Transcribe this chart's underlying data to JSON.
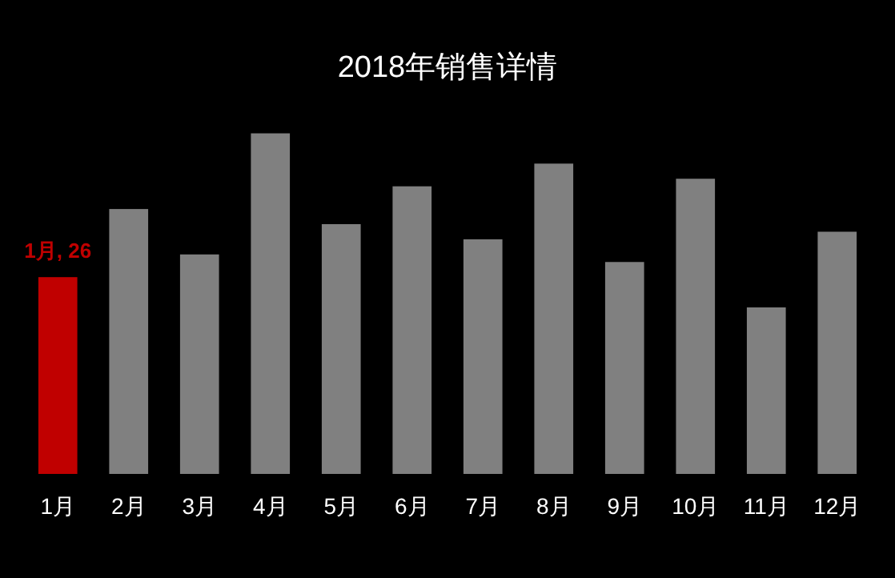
{
  "chart_data": {
    "type": "bar",
    "title": "2018年销售详情",
    "categories": [
      "1月",
      "2月",
      "3月",
      "4月",
      "5月",
      "6月",
      "7月",
      "8月",
      "9月",
      "10月",
      "11月",
      "12月"
    ],
    "values": [
      26,
      35,
      29,
      45,
      33,
      38,
      31,
      41,
      28,
      39,
      22,
      32
    ],
    "colors": [
      "#c00000",
      "#808080",
      "#808080",
      "#808080",
      "#808080",
      "#808080",
      "#808080",
      "#808080",
      "#808080",
      "#808080",
      "#808080",
      "#808080"
    ],
    "value_labels": [
      "1月, 26",
      null,
      null,
      null,
      null,
      null,
      null,
      null,
      null,
      null,
      null,
      null
    ]
  }
}
